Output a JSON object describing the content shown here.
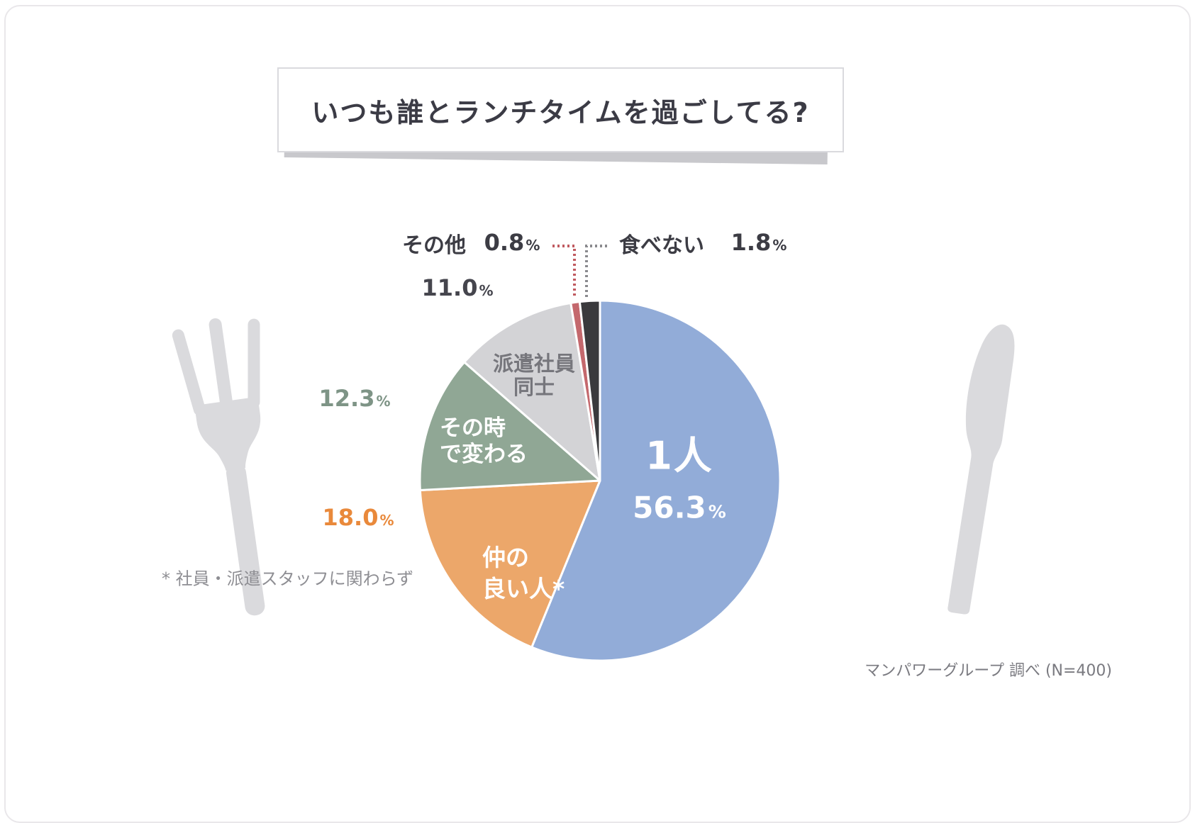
{
  "header": {
    "title": "いつも誰とランチタイムを過ごしてる?"
  },
  "chart_data": {
    "type": "pie",
    "title": "いつも誰とランチタイムを過ごしてる?",
    "unit": "%",
    "direction": "clockwise",
    "start_angle_deg": 0,
    "legend_position": "inside-and-callouts",
    "series": [
      {
        "label": "1人",
        "value": 56.3,
        "display": "56.3",
        "color": "#92acd8",
        "lines": [
          "1人"
        ]
      },
      {
        "label": "仲の良い人*",
        "value": 18.0,
        "display": "18.0",
        "color": "#eca76a",
        "lines": [
          "仲の",
          "良い人*"
        ]
      },
      {
        "label": "その時で変わる",
        "value": 12.3,
        "display": "12.3",
        "color": "#90a795",
        "lines": [
          "その時",
          "で変わる"
        ]
      },
      {
        "label": "派遣社員同士",
        "value": 11.0,
        "display": "11.0",
        "color": "#d3d3d6",
        "lines": [
          "派遣社員",
          "同士"
        ]
      },
      {
        "label": "その他",
        "value": 0.8,
        "display": "0.8",
        "color": "#c4686d",
        "lines": []
      },
      {
        "label": "食べない",
        "value": 1.8,
        "display": "1.8",
        "color": "#3a3a3d",
        "lines": []
      }
    ],
    "leader_colors": {
      "sonota": "#c05a60",
      "tabenai": "#8a8a8e"
    },
    "label_colors": {
      "inside_primary": "#ffffff",
      "haken_label": "#76767c",
      "pct_11": "#45454d",
      "pct_12": "#7e9486",
      "pct_18": "#e9893b",
      "top_labels": "#3c3c44",
      "footnote": "#8e8e93",
      "source": "#7a7a80",
      "cutlery": "#dadadd"
    },
    "footnote": "* 社員・派遣スタッフに関わらず",
    "source": "マンパワーグループ 調べ (N=400)"
  }
}
